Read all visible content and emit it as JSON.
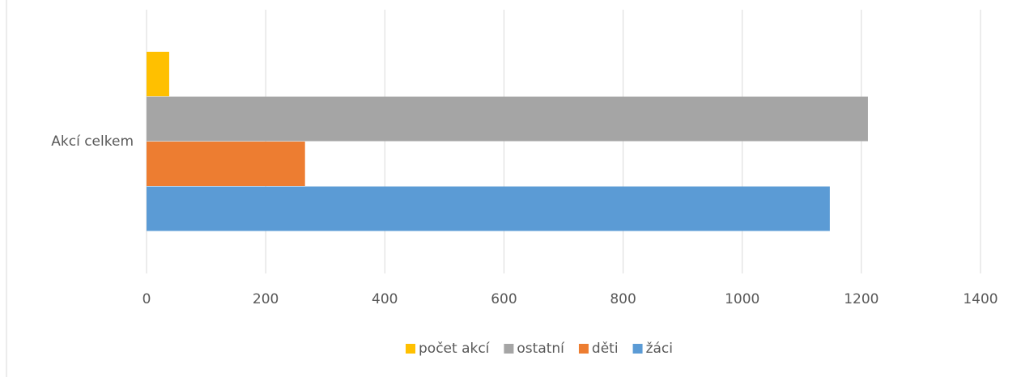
{
  "chart_data": {
    "type": "bar",
    "orientation": "horizontal",
    "categories": [
      "Akcí celkem"
    ],
    "series": [
      {
        "name": "počet akcí",
        "color": "#FFC000",
        "values": [
          38
        ]
      },
      {
        "name": "ostatní",
        "color": "#A5A5A5",
        "values": [
          1211
        ]
      },
      {
        "name": "děti",
        "color": "#ED7D31",
        "values": [
          266
        ]
      },
      {
        "name": "žáci",
        "color": "#5B9BD5",
        "values": [
          1147
        ]
      }
    ],
    "xlim": [
      0,
      1400
    ],
    "xticks": [
      0,
      200,
      400,
      600,
      800,
      1000,
      1200,
      1400
    ],
    "grid": true,
    "legend": "bottom"
  }
}
